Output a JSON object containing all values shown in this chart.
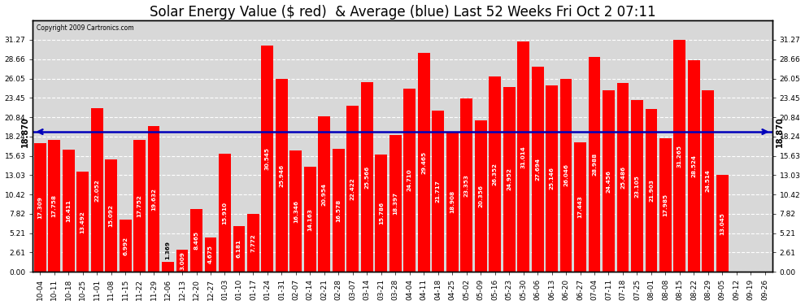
{
  "title": "Solar Energy Value ($ red)  & Average (blue) Last 52 Weeks Fri Oct 2 07:11",
  "copyright": "Copyright 2009 Cartronics.com",
  "average": 18.87,
  "categories": [
    "10-04",
    "10-11",
    "10-18",
    "10-25",
    "11-01",
    "11-08",
    "11-15",
    "11-22",
    "11-29",
    "12-06",
    "12-13",
    "12-20",
    "12-27",
    "01-03",
    "01-10",
    "01-17",
    "01-24",
    "01-31",
    "02-07",
    "02-14",
    "02-21",
    "02-28",
    "03-07",
    "03-14",
    "03-21",
    "03-28",
    "04-04",
    "04-11",
    "04-18",
    "04-25",
    "05-02",
    "05-09",
    "05-16",
    "05-23",
    "05-30",
    "06-06",
    "06-13",
    "06-20",
    "06-27",
    "07-04",
    "07-11",
    "07-18",
    "07-25",
    "08-01",
    "08-08",
    "08-15",
    "08-22",
    "08-29",
    "09-05",
    "09-12",
    "09-19",
    "09-26"
  ],
  "values": [
    17.309,
    17.758,
    16.411,
    13.492,
    22.052,
    15.092,
    6.992,
    17.752,
    19.632,
    1.369,
    3.009,
    8.465,
    4.675,
    15.91,
    6.181,
    7.772,
    30.545,
    25.946,
    16.346,
    14.163,
    20.954,
    16.578,
    22.422,
    25.566,
    15.786,
    18.397,
    24.71,
    29.465,
    21.717,
    18.908,
    23.353,
    20.356,
    26.352,
    24.952,
    31.014,
    27.694,
    25.146,
    26.046,
    17.443,
    28.988,
    24.456,
    25.486,
    23.105,
    21.903,
    17.985,
    31.265,
    28.524,
    24.514,
    13.045,
    0,
    0,
    0
  ],
  "bar_color": "#ff0000",
  "avg_line_color": "#0000bb",
  "bg_color": "#ffffff",
  "plot_bg_color": "#d8d8d8",
  "grid_color": "#ffffff",
  "ylim_max": 33.88,
  "yticks": [
    0.0,
    2.61,
    5.21,
    7.82,
    10.42,
    13.03,
    15.63,
    18.24,
    20.84,
    23.45,
    26.05,
    28.66,
    31.27
  ],
  "title_fontsize": 12,
  "tick_fontsize": 6.5,
  "value_fontsize": 5.2
}
